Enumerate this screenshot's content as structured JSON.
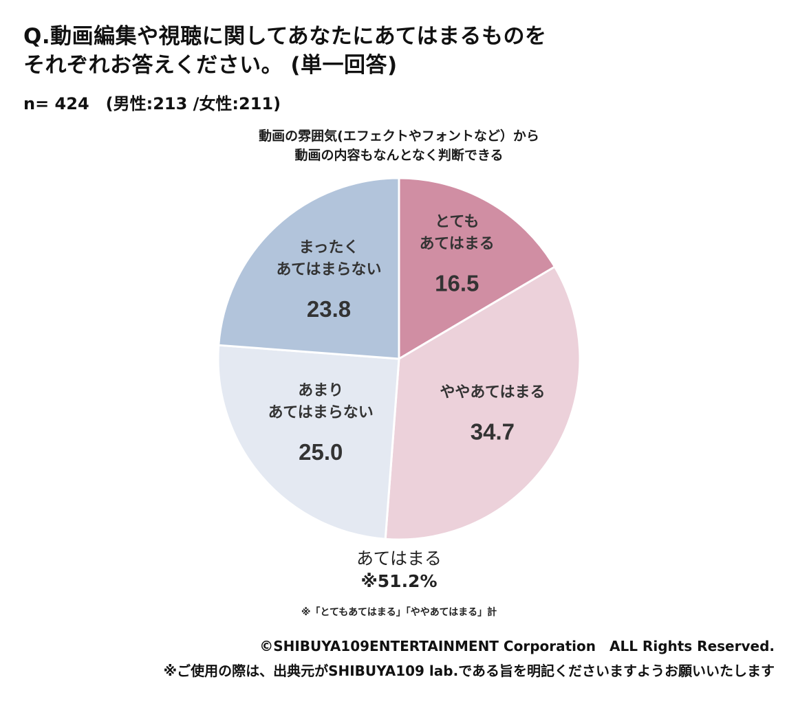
{
  "header": {
    "question_line1": "Q.動画編集や視聴に関してあなたにあてはまるものを",
    "question_line2": "それぞれお答えください。 (単一回答)",
    "sample": "n= 424　(男性:213 /女性:211)"
  },
  "chart_data": {
    "type": "pie",
    "title_lines": [
      "動画の雰囲気(エフェクトやフォントなど）から",
      "動画の内容もなんとなく判断できる"
    ],
    "start_angle_deg": 0,
    "direction": "clockwise",
    "slices": [
      {
        "label_lines": [
          "とても",
          "あてはまる"
        ],
        "value": 16.5,
        "value_label": "16.5",
        "color": "#d08ea3"
      },
      {
        "label_lines": [
          "ややあてはまる"
        ],
        "value": 34.7,
        "value_label": "34.7",
        "color": "#ecd1da"
      },
      {
        "label_lines": [
          "あまり",
          "あてはまらない"
        ],
        "value": 25.0,
        "value_label": "25.0",
        "color": "#e4e9f2"
      },
      {
        "label_lines": [
          "まったく",
          "あてはまらない"
        ],
        "value": 23.8,
        "value_label": "23.8",
        "color": "#b2c4db"
      }
    ],
    "text_color": "#333333",
    "stroke_color": "#ffffff"
  },
  "summary": {
    "label": "あてはまる",
    "value": "※51.2%"
  },
  "footer": {
    "note": "※「とてもあてはまる」「ややあてはまる」計",
    "copyright": "©SHIBUYA109ENTERTAINMENT Corporation　ALL Rights Reserved.",
    "usage": "※ご使用の際は、出典元がSHIBUYA109 lab.である旨を明記くださいますようお願いいたします"
  }
}
